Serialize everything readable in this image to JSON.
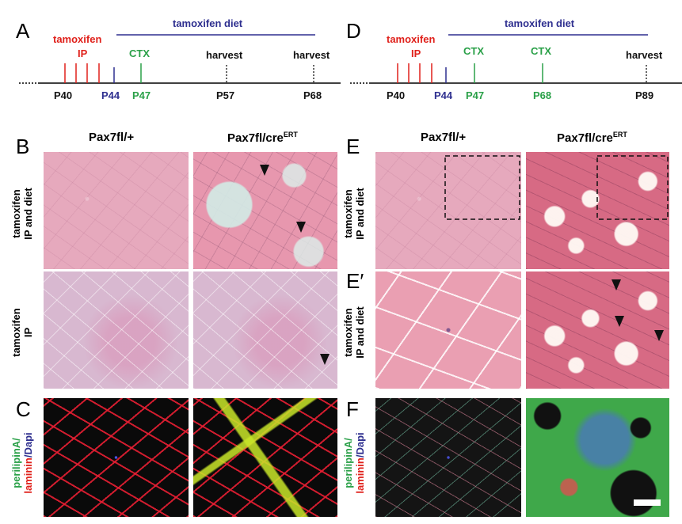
{
  "panels": {
    "A": "A",
    "B": "B",
    "C": "C",
    "D": "D",
    "E": "E",
    "E_prime": "E′",
    "F": "F"
  },
  "timeline_left": {
    "tamoxifen": "tamoxifen",
    "ip": "IP",
    "diet": "tamoxifen diet",
    "ctx": "CTX",
    "harvest1": "harvest",
    "harvest2": "harvest",
    "p40": "P40",
    "p44": "P44",
    "p47": "P47",
    "p57": "P57",
    "p68": "P68"
  },
  "timeline_right": {
    "tamoxifen": "tamoxifen",
    "ip": "IP",
    "diet": "tamoxifen diet",
    "ctx1": "CTX",
    "ctx2": "CTX",
    "harvest": "harvest",
    "p40": "P40",
    "p44": "P44",
    "p47": "P47",
    "p68": "P68",
    "p89": "P89"
  },
  "columns": {
    "left_a": "Pax7fl/+",
    "left_b": "Pax7fl/cre",
    "left_b_sup": "ERT",
    "right_a": "Pax7fl/+",
    "right_b": "Pax7fl/cre",
    "right_b_sup": "ERT"
  },
  "row_labels": {
    "b_row1_line1": "tamoxifen",
    "b_row1_line2": "IP and diet",
    "b_row2_line1": "tamoxifen",
    "b_row2_line2": "IP",
    "e_row1_line1": "tamoxifen",
    "e_row1_line2": "IP and diet",
    "e_row2_line1": "tamoxifen",
    "e_row2_line2": "IP and diet"
  },
  "stain_labels": {
    "perilipin": "perilipinA/",
    "laminin": "laminin",
    "slash_dapi": "/Dapi"
  },
  "colors": {
    "red": "#e0211b",
    "blue": "#2e2f8f",
    "green": "#2aa048"
  }
}
